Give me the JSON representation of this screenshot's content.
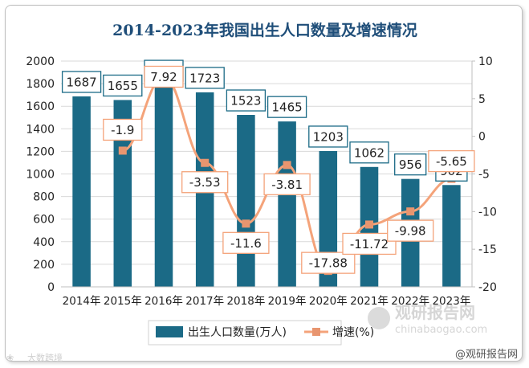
{
  "chart_data": {
    "type": "bar",
    "title": "2014-2023年我国出生人口数量及增速情况",
    "categories": [
      "2014年",
      "2015年",
      "2016年",
      "2017年",
      "2018年",
      "2019年",
      "2020年",
      "2021年",
      "2022年",
      "2023年"
    ],
    "series": [
      {
        "name": "出生人口数量(万人)",
        "type": "bar",
        "axis": "left",
        "values": [
          1687,
          1655,
          1786,
          1723,
          1523,
          1465,
          1203,
          1062,
          956,
          902
        ],
        "labels": [
          "1687",
          "1655",
          "1786",
          "1723",
          "1523",
          "1465",
          "1203",
          "1062",
          "956",
          "902"
        ]
      },
      {
        "name": "增速(%)",
        "type": "line",
        "axis": "right",
        "values": [
          null,
          -1.9,
          7.92,
          -3.53,
          -11.6,
          -3.81,
          -17.88,
          -11.72,
          -9.98,
          -5.65
        ],
        "labels": [
          "",
          "-1.9",
          "7.92",
          "-3.53",
          "-11.6",
          "-3.81",
          "-17.88",
          "-11.72",
          "-9.98",
          "-5.65"
        ]
      }
    ],
    "y_left": {
      "min": 0,
      "max": 2000,
      "ticks": [
        "0",
        "200",
        "400",
        "600",
        "800",
        "1000",
        "1200",
        "1400",
        "1600",
        "1800",
        "2000"
      ]
    },
    "y_right": {
      "min": -20,
      "max": 10,
      "ticks": [
        "-20",
        "-15",
        "-10",
        "-5",
        "0",
        "5",
        "10"
      ]
    },
    "grid": true,
    "legend_position": "bottom",
    "colors": {
      "bar": "#1b6a86",
      "line": "#f4a37a",
      "marker": "#e8956f",
      "title": "#1f4e79",
      "label_border": "#1b6a86",
      "label_border_line": "#f4a37a"
    }
  },
  "watermarks": {
    "brand_cn": "观研报告网",
    "brand_url": "chinabaogao.com",
    "footer_right": "@观研报告网",
    "footer_left": "大数跨境"
  }
}
